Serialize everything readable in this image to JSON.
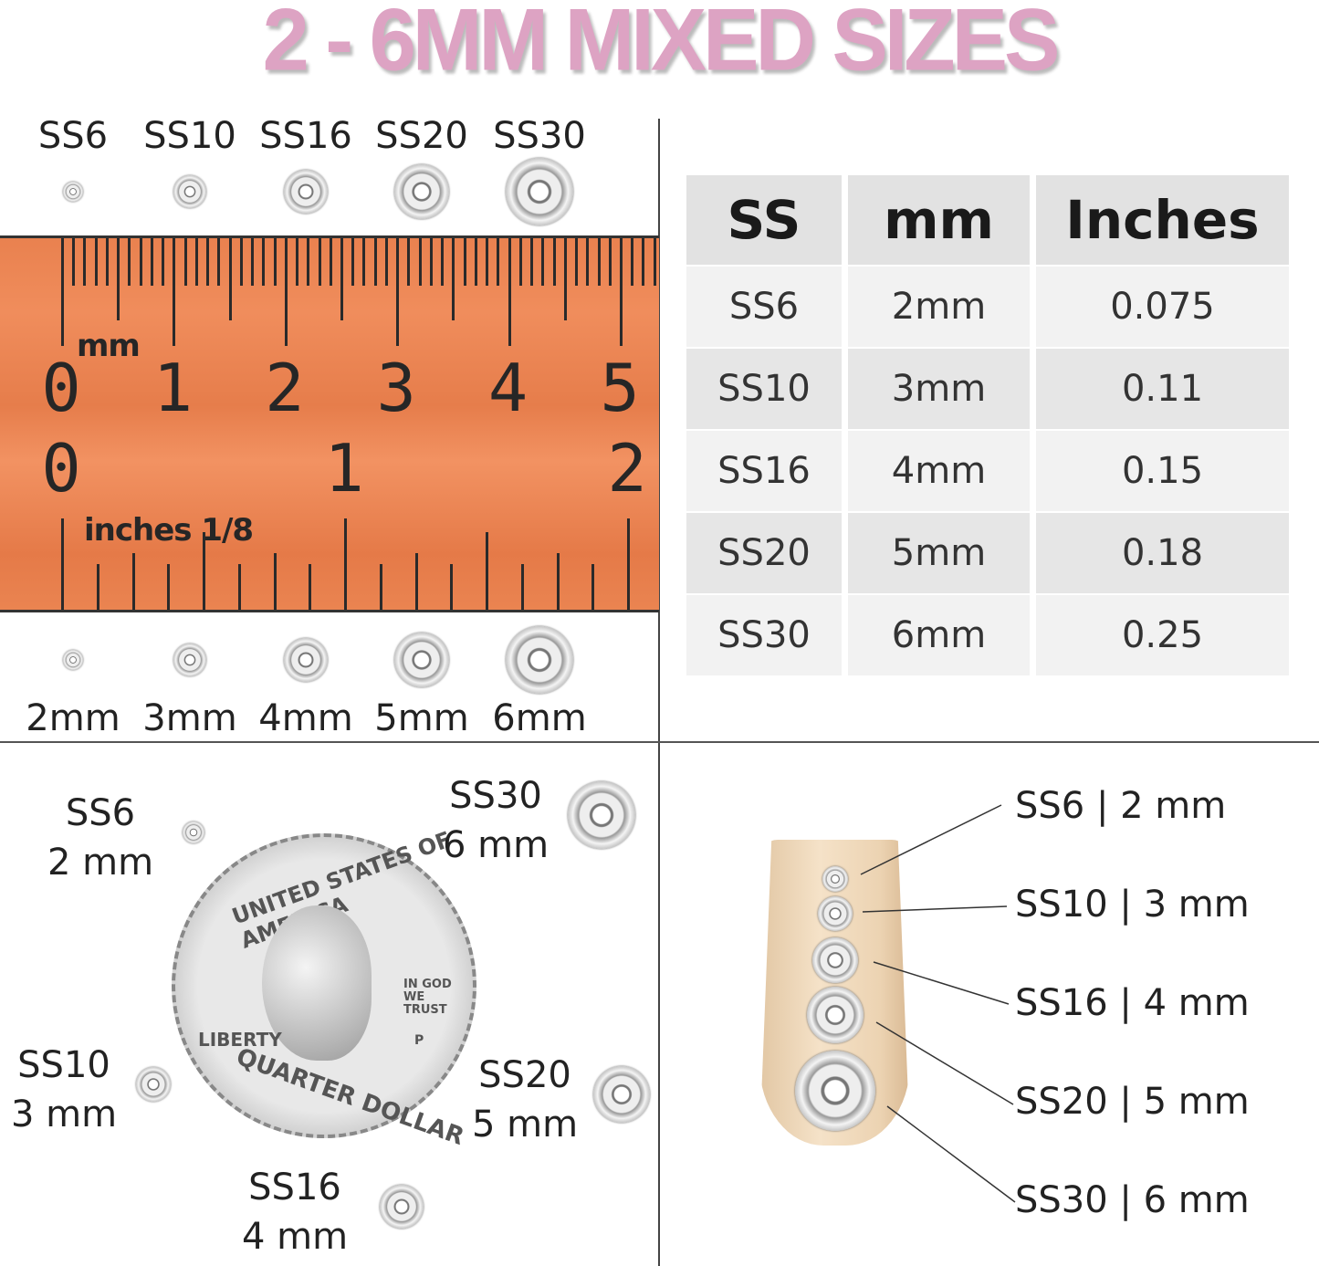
{
  "title": "2 - 6MM MIXED SIZES",
  "colors": {
    "title": "#dda3c3",
    "ruler": "#ea8451",
    "table_header": "#e2e2e2"
  },
  "ruler_panel": {
    "top_labels": [
      "SS6",
      "SS10",
      "SS16",
      "SS20",
      "SS30"
    ],
    "bottom_labels": [
      "2mm",
      "3mm",
      "4mm",
      "5mm",
      "6mm"
    ],
    "ruler": {
      "metric_unit": "mm",
      "metric_numbers": [
        "0",
        "1",
        "2",
        "3",
        "4",
        "5"
      ],
      "imperial_unit": "inches 1/8",
      "imperial_numbers": [
        "0",
        "1",
        "2"
      ]
    }
  },
  "table": {
    "headers": [
      "SS",
      "mm",
      "Inches"
    ],
    "rows": [
      [
        "SS6",
        "2mm",
        "0.075"
      ],
      [
        "SS10",
        "3mm",
        "0.11"
      ],
      [
        "SS16",
        "4mm",
        "0.15"
      ],
      [
        "SS20",
        "5mm",
        "0.18"
      ],
      [
        "SS30",
        "6mm",
        "0.25"
      ]
    ]
  },
  "coin_panel": {
    "labels": [
      {
        "ss": "SS6",
        "mm": "2 mm"
      },
      {
        "ss": "SS30",
        "mm": "6 mm"
      },
      {
        "ss": "SS10",
        "mm": "3 mm"
      },
      {
        "ss": "SS20",
        "mm": "5 mm"
      },
      {
        "ss": "SS16",
        "mm": "4 mm"
      }
    ],
    "coin": {
      "top": "UNITED STATES OF AMERICA",
      "motto": "IN GOD WE TRUST",
      "liberty": "LIBERTY",
      "bottom": "QUARTER DOLLAR",
      "mint": "P"
    }
  },
  "nail_panel": {
    "labels": [
      "SS6 | 2 mm",
      "SS10 | 3 mm",
      "SS16 | 4 mm",
      "SS20 | 5 mm",
      "SS30 | 6 mm"
    ]
  }
}
